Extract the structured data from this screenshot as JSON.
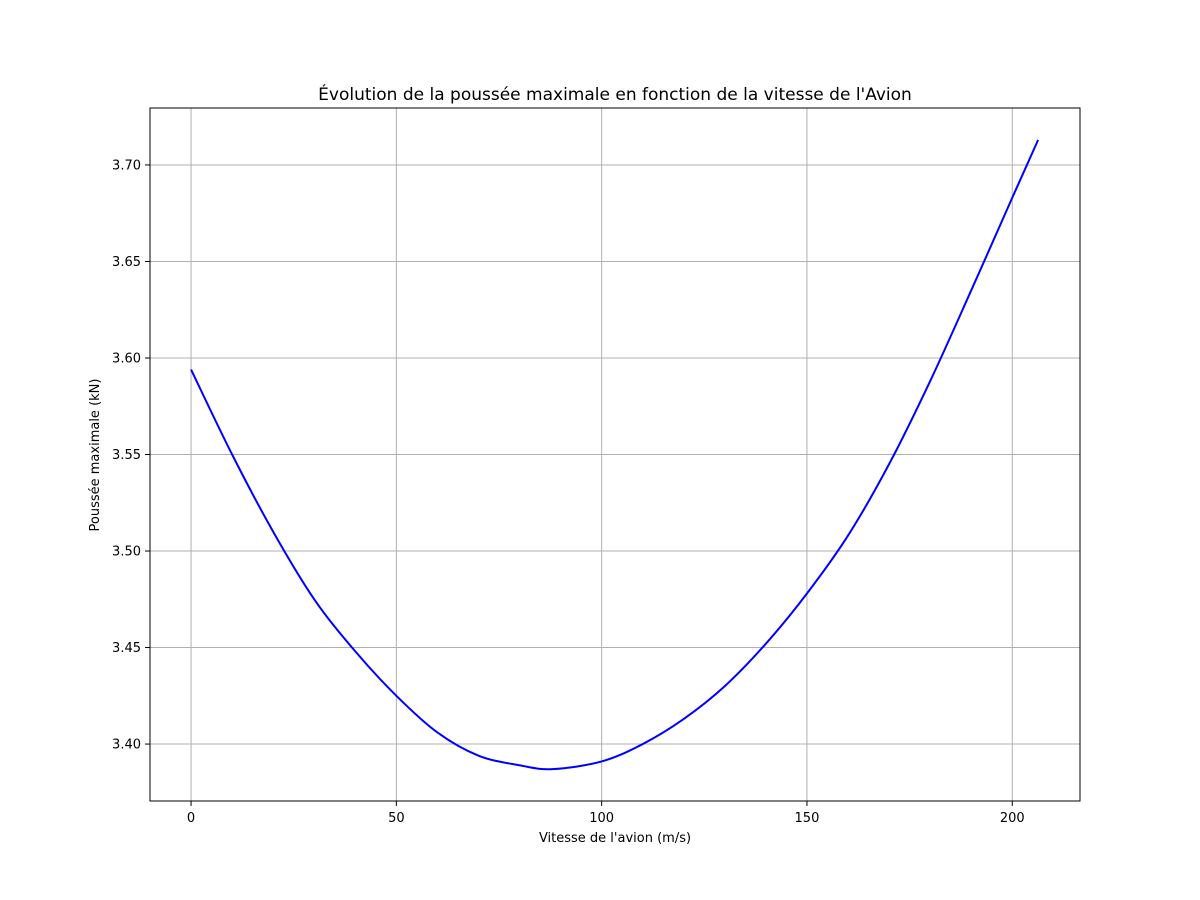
{
  "chart_data": {
    "type": "line",
    "title": "Évolution de la poussée maximale en fonction de la vitesse de l'Avion",
    "xlabel": "Vitesse de l'avion (m/s)",
    "ylabel": "Poussée maximale (kN)",
    "xlim": [
      -10,
      216.5
    ],
    "ylim": [
      3.3705,
      3.7295
    ],
    "xticks": [
      0,
      50,
      100,
      150,
      200
    ],
    "xtick_labels": [
      "0",
      "50",
      "100",
      "150",
      "200"
    ],
    "yticks": [
      3.4,
      3.45,
      3.5,
      3.55,
      3.6,
      3.65,
      3.7
    ],
    "ytick_labels": [
      "3.40",
      "3.45",
      "3.50",
      "3.55",
      "3.60",
      "3.65",
      "3.70"
    ],
    "grid": true,
    "legend": "none",
    "line_color": "#0000ff",
    "series": [
      {
        "color": "#0000ff",
        "x": [
          0,
          10,
          20,
          30,
          40,
          50,
          60,
          70,
          80,
          88,
          100,
          110,
          120,
          130,
          140,
          150,
          160,
          170,
          180,
          190,
          200,
          206.3
        ],
        "y": [
          3.594,
          3.55,
          3.51,
          3.475,
          3.448,
          3.425,
          3.406,
          3.394,
          3.389,
          3.387,
          3.391,
          3.4,
          3.413,
          3.43,
          3.452,
          3.478,
          3.508,
          3.545,
          3.588,
          3.635,
          3.683,
          3.713
        ]
      }
    ]
  }
}
